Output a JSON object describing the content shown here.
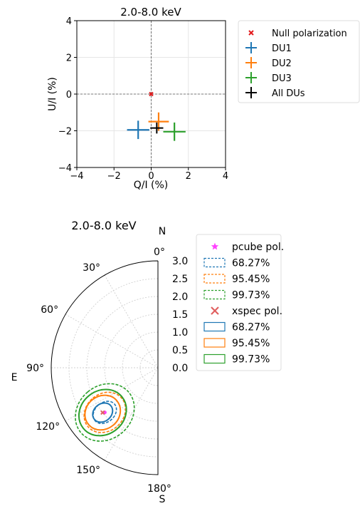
{
  "chart_data": [
    {
      "type": "scatter",
      "title": "2.0-8.0 keV",
      "xlabel": "Q/I (%)",
      "ylabel": "U/I (%)",
      "xlim": [
        -4,
        4
      ],
      "ylim": [
        -4,
        4
      ],
      "xticks": [
        "−4",
        "−2",
        "0",
        "2",
        "4"
      ],
      "yticks": [
        "−4",
        "−2",
        "0",
        "2",
        "4"
      ],
      "grid": true,
      "legend_position": "outside-right",
      "series": [
        {
          "name": "Null polarization",
          "color": "#e31a1c",
          "marker": "x",
          "points": [
            {
              "x": 0.0,
              "y": 0.0
            }
          ]
        },
        {
          "name": "DU1",
          "color": "#1f77b4",
          "marker": "errorbar",
          "points": [
            {
              "x": -0.7,
              "y": -1.95,
              "xerr": 0.6,
              "yerr": 0.5
            }
          ]
        },
        {
          "name": "DU2",
          "color": "#ff7f0e",
          "marker": "errorbar",
          "points": [
            {
              "x": 0.4,
              "y": -1.5,
              "xerr": 0.55,
              "yerr": 0.5
            }
          ]
        },
        {
          "name": "DU3",
          "color": "#2ca02c",
          "marker": "errorbar",
          "points": [
            {
              "x": 1.25,
              "y": -2.05,
              "xerr": 0.6,
              "yerr": 0.5
            }
          ]
        },
        {
          "name": "All DUs",
          "color": "#000000",
          "marker": "errorbar",
          "points": [
            {
              "x": 0.3,
              "y": -1.85,
              "xerr": 0.35,
              "yerr": 0.3
            }
          ]
        }
      ]
    },
    {
      "type": "polar",
      "title": "2.0-8.0 keV",
      "north_label": "N",
      "south_label": "S",
      "east_label": "E",
      "angle_ticks": [
        {
          "deg": 0,
          "label": "0°"
        },
        {
          "deg": 30,
          "label": "30°"
        },
        {
          "deg": 60,
          "label": "60°"
        },
        {
          "deg": 90,
          "label": "90°"
        },
        {
          "deg": 120,
          "label": "120°"
        },
        {
          "deg": 150,
          "label": "150°"
        },
        {
          "deg": 180,
          "label": "180°"
        }
      ],
      "radial_ticks": [
        "3.0",
        "2.5",
        "2.0",
        "1.5",
        "1.0",
        "0.5",
        "0.0"
      ],
      "rlim": [
        0,
        3.0
      ],
      "grid": true,
      "legend_position": "outside-right",
      "legend": [
        {
          "label": "pcube pol.",
          "kind": "star",
          "color": "#ff40ff"
        },
        {
          "label": "68.27%",
          "kind": "dashed-box",
          "color": "#1f77b4"
        },
        {
          "label": "95.45%",
          "kind": "dashed-box",
          "color": "#ff7f0e"
        },
        {
          "label": "99.73%",
          "kind": "dashed-box",
          "color": "#2ca02c"
        },
        {
          "label": "xspec pol.",
          "kind": "x",
          "color": "#e06060"
        },
        {
          "label": "68.27%",
          "kind": "solid-box",
          "color": "#1f77b4"
        },
        {
          "label": "95.45%",
          "kind": "solid-box",
          "color": "#ff7f0e"
        },
        {
          "label": "99.73%",
          "kind": "solid-box",
          "color": "#2ca02c"
        }
      ],
      "points": [
        {
          "name": "pcube pol.",
          "pa_deg": 130,
          "pd": 1.95,
          "color": "#ff40ff"
        },
        {
          "name": "xspec pol.",
          "pa_deg": 129,
          "pd": 2.0,
          "color": "#e06060"
        }
      ],
      "contours": [
        {
          "level": "99.73%",
          "style": "dashed",
          "color": "#2ca02c",
          "pa_deg": 130,
          "pd": 1.95,
          "a_pd": 0.88,
          "b_pa_deg": 21
        },
        {
          "level": "95.45%",
          "style": "dashed",
          "color": "#ff7f0e",
          "pa_deg": 130,
          "pd": 1.95,
          "a_pd": 0.62,
          "b_pa_deg": 15
        },
        {
          "level": "68.27%",
          "style": "dashed",
          "color": "#1f77b4",
          "pa_deg": 130,
          "pd": 1.95,
          "a_pd": 0.36,
          "b_pa_deg": 8
        },
        {
          "level": "99.73%",
          "style": "solid",
          "color": "#2ca02c",
          "pa_deg": 129,
          "pd": 2.0,
          "a_pd": 0.7,
          "b_pa_deg": 17
        },
        {
          "level": "95.45%",
          "style": "solid",
          "color": "#ff7f0e",
          "pa_deg": 129,
          "pd": 2.0,
          "a_pd": 0.52,
          "b_pa_deg": 13
        },
        {
          "level": "68.27%",
          "style": "solid",
          "color": "#1f77b4",
          "pa_deg": 129,
          "pd": 2.0,
          "a_pd": 0.3,
          "b_pa_deg": 7
        }
      ]
    }
  ]
}
